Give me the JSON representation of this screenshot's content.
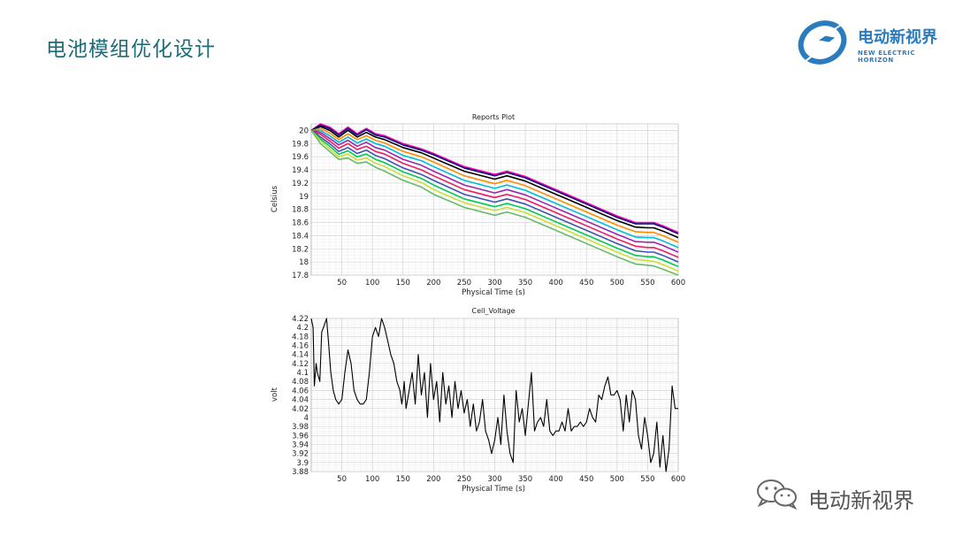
{
  "slide": {
    "title": "电池模组优化设计",
    "title_color": "#1a6e79"
  },
  "brand": {
    "name_cn": "电动新视界",
    "name_en": "NEW ELECTRIC HORIZON",
    "logo_icon": "lightning-globe-icon",
    "color": "#2b7bbf"
  },
  "watermark": {
    "icon": "wechat-icon",
    "text": "电动新视界"
  },
  "chart_data": [
    {
      "type": "line",
      "title": "Reports Plot",
      "xlabel": "Physical Time (s)",
      "ylabel": "Celsius",
      "xlim": [
        0,
        600
      ],
      "ylim": [
        17.8,
        20.1
      ],
      "xticks": [
        50,
        100,
        150,
        200,
        250,
        300,
        350,
        400,
        450,
        500,
        550,
        600
      ],
      "yticks": [
        17.8,
        18,
        18.2,
        18.4,
        18.6,
        18.8,
        19,
        19.2,
        19.4,
        19.6,
        19.8,
        20
      ],
      "grid": true,
      "legend": "none",
      "x": [
        0,
        15,
        30,
        45,
        60,
        75,
        90,
        105,
        120,
        150,
        180,
        200,
        250,
        300,
        320,
        350,
        400,
        450,
        500,
        530,
        550,
        560,
        575,
        600
      ],
      "series": [
        {
          "color": "#ff00aa",
          "values": [
            20.0,
            20.1,
            20.05,
            19.95,
            20.05,
            19.95,
            20.03,
            19.95,
            19.92,
            19.8,
            19.72,
            19.65,
            19.45,
            19.33,
            19.38,
            19.3,
            19.1,
            18.9,
            18.7,
            18.6,
            18.6,
            18.6,
            18.55,
            18.45
          ]
        },
        {
          "color": "#000080",
          "values": [
            20.0,
            20.08,
            20.03,
            19.93,
            20.03,
            19.93,
            20.01,
            19.93,
            19.9,
            19.78,
            19.7,
            19.63,
            19.43,
            19.31,
            19.36,
            19.28,
            19.08,
            18.88,
            18.68,
            18.58,
            18.58,
            18.58,
            18.53,
            18.43
          ]
        },
        {
          "color": "#000000",
          "values": [
            20.0,
            20.06,
            20.0,
            19.9,
            20.0,
            19.9,
            19.97,
            19.9,
            19.86,
            19.74,
            19.66,
            19.58,
            19.38,
            19.26,
            19.31,
            19.23,
            19.03,
            18.83,
            18.63,
            18.53,
            18.52,
            18.52,
            18.47,
            18.37
          ]
        },
        {
          "color": "#ff8c00",
          "values": [
            20.0,
            20.03,
            19.96,
            19.86,
            19.95,
            19.86,
            19.92,
            19.85,
            19.81,
            19.68,
            19.6,
            19.52,
            19.31,
            19.19,
            19.24,
            19.16,
            18.96,
            18.76,
            18.56,
            18.46,
            18.45,
            18.45,
            18.4,
            18.3
          ]
        },
        {
          "color": "#00bcd4",
          "values": [
            20.0,
            20.0,
            19.92,
            19.82,
            19.9,
            19.81,
            19.87,
            19.8,
            19.76,
            19.62,
            19.54,
            19.45,
            19.24,
            19.12,
            19.17,
            19.09,
            18.89,
            18.69,
            18.49,
            18.38,
            18.37,
            18.37,
            18.32,
            18.22
          ]
        },
        {
          "color": "#9c27b0",
          "values": [
            20.0,
            19.97,
            19.88,
            19.78,
            19.85,
            19.76,
            19.82,
            19.74,
            19.7,
            19.56,
            19.47,
            19.38,
            19.17,
            19.05,
            19.1,
            19.02,
            18.82,
            18.62,
            18.42,
            18.31,
            18.3,
            18.3,
            18.25,
            18.15
          ]
        },
        {
          "color": "#e91e63",
          "values": [
            20.0,
            19.94,
            19.84,
            19.73,
            19.8,
            19.71,
            19.76,
            19.68,
            19.64,
            19.5,
            19.4,
            19.31,
            19.1,
            18.98,
            19.03,
            18.95,
            18.75,
            18.55,
            18.35,
            18.24,
            18.22,
            18.22,
            18.17,
            18.07
          ]
        },
        {
          "color": "#3f51b5",
          "values": [
            20.0,
            19.9,
            19.8,
            19.68,
            19.74,
            19.65,
            19.7,
            19.62,
            19.57,
            19.43,
            19.33,
            19.24,
            19.03,
            18.91,
            18.96,
            18.88,
            18.68,
            18.48,
            18.28,
            18.17,
            18.15,
            18.15,
            18.1,
            18.0
          ]
        },
        {
          "color": "#00c853",
          "values": [
            20.0,
            19.87,
            19.76,
            19.64,
            19.69,
            19.6,
            19.64,
            19.56,
            19.51,
            19.37,
            19.27,
            19.17,
            18.96,
            18.84,
            18.89,
            18.81,
            18.61,
            18.41,
            18.21,
            18.1,
            18.08,
            18.08,
            18.03,
            17.93
          ]
        },
        {
          "color": "#cddc39",
          "values": [
            20.0,
            19.84,
            19.72,
            19.6,
            19.64,
            19.55,
            19.58,
            19.5,
            19.45,
            19.31,
            19.21,
            19.1,
            18.9,
            18.78,
            18.83,
            18.75,
            18.55,
            18.35,
            18.15,
            18.04,
            18.02,
            18.01,
            17.96,
            17.86
          ]
        },
        {
          "color": "#66bb6a",
          "values": [
            20.0,
            19.8,
            19.68,
            19.56,
            19.58,
            19.5,
            19.52,
            19.44,
            19.38,
            19.24,
            19.14,
            19.03,
            18.83,
            18.71,
            18.76,
            18.68,
            18.48,
            18.28,
            18.08,
            17.97,
            17.95,
            17.94,
            17.89,
            17.8
          ]
        }
      ]
    },
    {
      "type": "line",
      "title": "Cell_Voltage",
      "xlabel": "Physical Time (s)",
      "ylabel": "volt",
      "xlim": [
        0,
        600
      ],
      "ylim": [
        3.88,
        4.22
      ],
      "xticks": [
        50,
        100,
        150,
        200,
        250,
        300,
        350,
        400,
        450,
        500,
        550,
        600
      ],
      "yticks": [
        3.88,
        3.9,
        3.92,
        3.94,
        3.96,
        3.98,
        4,
        4.02,
        4.04,
        4.06,
        4.08,
        4.1,
        4.12,
        4.14,
        4.16,
        4.18,
        4.2,
        4.22
      ],
      "grid": true,
      "legend": "none",
      "x": [
        0,
        3,
        5,
        8,
        10,
        14,
        17,
        20,
        25,
        28,
        32,
        36,
        40,
        45,
        50,
        55,
        60,
        65,
        70,
        75,
        80,
        85,
        90,
        95,
        100,
        105,
        110,
        115,
        120,
        125,
        130,
        135,
        140,
        145,
        148,
        150,
        152,
        155,
        160,
        165,
        170,
        175,
        180,
        185,
        190,
        195,
        200,
        205,
        210,
        215,
        220,
        225,
        230,
        235,
        240,
        245,
        250,
        255,
        260,
        265,
        270,
        275,
        280,
        285,
        290,
        295,
        300,
        305,
        310,
        315,
        320,
        325,
        330,
        335,
        340,
        345,
        350,
        355,
        360,
        365,
        370,
        375,
        380,
        385,
        390,
        395,
        400,
        405,
        410,
        415,
        420,
        425,
        430,
        435,
        440,
        445,
        450,
        455,
        460,
        465,
        470,
        475,
        480,
        485,
        490,
        495,
        500,
        505,
        510,
        515,
        520,
        525,
        530,
        535,
        540,
        545,
        550,
        555,
        560,
        565,
        570,
        575,
        580,
        585,
        590,
        595,
        600
      ],
      "values": [
        4.22,
        4.2,
        4.07,
        4.12,
        4.1,
        4.08,
        4.19,
        4.2,
        4.22,
        4.17,
        4.1,
        4.06,
        4.04,
        4.03,
        4.04,
        4.1,
        4.15,
        4.12,
        4.06,
        4.04,
        4.03,
        4.03,
        4.04,
        4.1,
        4.18,
        4.2,
        4.18,
        4.22,
        4.2,
        4.17,
        4.14,
        4.12,
        4.08,
        4.06,
        4.03,
        4.05,
        4.08,
        4.02,
        4.06,
        4.1,
        4.03,
        4.14,
        4.05,
        4.1,
        4.0,
        4.12,
        4.04,
        4.08,
        3.99,
        4.1,
        4.03,
        4.07,
        4.0,
        4.08,
        4.02,
        4.06,
        4.01,
        4.04,
        3.98,
        4.03,
        3.97,
        3.99,
        4.04,
        3.97,
        3.95,
        3.92,
        3.95,
        4.0,
        3.94,
        4.05,
        3.97,
        3.92,
        3.9,
        4.06,
        3.99,
        4.02,
        3.96,
        4.03,
        4.1,
        3.97,
        3.99,
        4.0,
        3.98,
        4.04,
        3.97,
        3.96,
        3.97,
        3.97,
        3.99,
        3.97,
        4.02,
        3.97,
        3.98,
        3.98,
        3.99,
        3.98,
        3.99,
        4.02,
        4.0,
        3.99,
        4.05,
        4.04,
        4.07,
        4.09,
        4.05,
        4.05,
        4.06,
        4.04,
        3.97,
        4.05,
        3.99,
        4.06,
        4.04,
        3.96,
        3.93,
        4.0,
        3.96,
        3.9,
        3.92,
        3.99,
        3.89,
        3.96,
        3.88,
        3.93,
        4.07,
        4.02,
        4.02
      ]
    }
  ]
}
